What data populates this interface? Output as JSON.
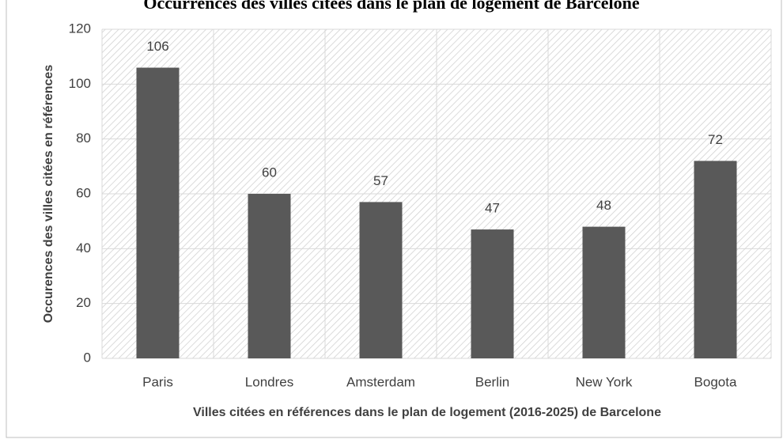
{
  "chart_data": {
    "type": "bar",
    "title": "Occurrences des villes citées dans le plan de logement de Barcelone",
    "x_label": "Villes citées en références dans le plan de logement (2016-2025) de Barcelone",
    "y_label": "Occurences des villes citées en références",
    "categories": [
      "Paris",
      "Londres",
      "Amsterdam",
      "Berlin",
      "New York",
      "Bogota"
    ],
    "values": [
      106,
      60,
      57,
      47,
      48,
      72
    ],
    "color": "#595959",
    "ylim": [
      0,
      120
    ],
    "yticks": [
      0,
      20,
      40,
      60,
      80,
      100,
      120
    ],
    "grid": true
  }
}
